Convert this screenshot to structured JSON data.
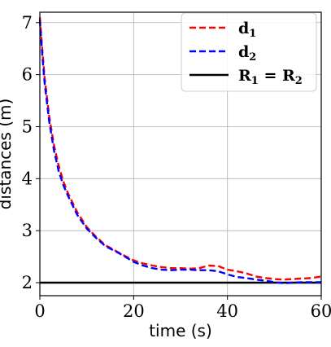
{
  "chart_data": {
    "type": "line",
    "xlabel": "time (s)",
    "ylabel": "distances (m)",
    "xlim": [
      0,
      60
    ],
    "ylim": [
      1.75,
      7.2
    ],
    "xticks": [
      0,
      20,
      40,
      60
    ],
    "yticks": [
      2,
      3,
      4,
      5,
      6,
      7
    ],
    "grid": true,
    "legend_position": "top-right",
    "series": [
      {
        "name": "d1",
        "name_main": "d",
        "name_sub": "1",
        "style": "dashed",
        "color": "#ff0000",
        "x": [
          0,
          0.5,
          1,
          2,
          3,
          4,
          5,
          6,
          8,
          10,
          12,
          14,
          16,
          18,
          20,
          22,
          24,
          26,
          28,
          30,
          32,
          34,
          36,
          38,
          40,
          42,
          44,
          46,
          48,
          50,
          52,
          54,
          56,
          58,
          60
        ],
        "y": [
          7.1,
          6.5,
          5.95,
          5.2,
          4.65,
          4.25,
          3.95,
          3.72,
          3.35,
          3.07,
          2.88,
          2.72,
          2.62,
          2.52,
          2.43,
          2.37,
          2.33,
          2.3,
          2.28,
          2.28,
          2.27,
          2.28,
          2.33,
          2.32,
          2.25,
          2.22,
          2.18,
          2.12,
          2.09,
          2.07,
          2.06,
          2.07,
          2.08,
          2.09,
          2.12
        ]
      },
      {
        "name": "d2",
        "name_main": "d",
        "name_sub": "2",
        "style": "dashed",
        "color": "#0000ff",
        "x": [
          0,
          0.5,
          1,
          2,
          3,
          4,
          5,
          6,
          8,
          10,
          12,
          14,
          16,
          18,
          20,
          22,
          24,
          26,
          28,
          30,
          32,
          34,
          36,
          38,
          40,
          42,
          44,
          46,
          48,
          50,
          52,
          54,
          56,
          58,
          60
        ],
        "y": [
          7.05,
          6.4,
          5.85,
          5.1,
          4.55,
          4.15,
          3.88,
          3.67,
          3.3,
          3.04,
          2.86,
          2.7,
          2.61,
          2.51,
          2.4,
          2.33,
          2.28,
          2.25,
          2.24,
          2.25,
          2.25,
          2.24,
          2.24,
          2.22,
          2.16,
          2.11,
          2.09,
          2.06,
          2.04,
          2.01,
          1.99,
          2.0,
          2.01,
          2.01,
          2.01
        ]
      },
      {
        "name": "R1 = R2",
        "name_main": "R",
        "name_sub": "1",
        "name_mid": " = R",
        "name_sub2": "2",
        "style": "solid",
        "color": "#000000",
        "x": [
          0,
          60
        ],
        "y": [
          2.0,
          2.0
        ]
      }
    ]
  }
}
